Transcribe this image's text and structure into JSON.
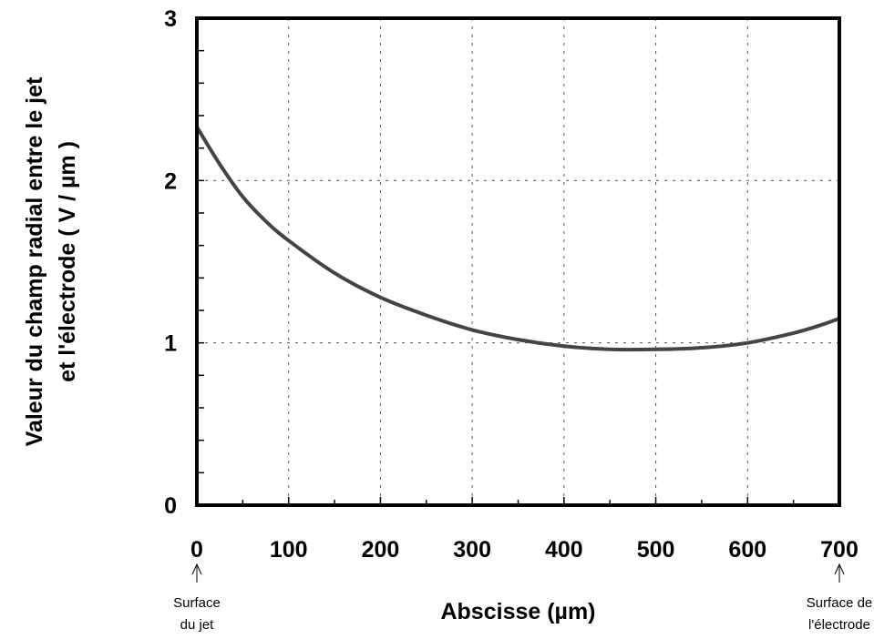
{
  "chart_data": {
    "type": "line",
    "title": "",
    "xlabel": "Abscisse (µm)",
    "ylabel_line1": "Valeur du champ radial entre le jet",
    "ylabel_line2": "et l'électrode ( V / µm )",
    "xlim": [
      0,
      700
    ],
    "ylim": [
      0,
      3
    ],
    "xticks": [
      0,
      100,
      200,
      300,
      400,
      500,
      600,
      700
    ],
    "yticks": [
      0,
      1,
      2,
      3
    ],
    "grid": true,
    "legend": "none",
    "series": [
      {
        "color": "#444444",
        "x": [
          0,
          25,
          50,
          75,
          100,
          150,
          200,
          250,
          300,
          350,
          400,
          450,
          500,
          550,
          600,
          650,
          680,
          700
        ],
        "y": [
          2.33,
          2.1,
          1.9,
          1.75,
          1.63,
          1.43,
          1.28,
          1.17,
          1.08,
          1.02,
          0.98,
          0.96,
          0.96,
          0.97,
          1.0,
          1.06,
          1.11,
          1.15
        ]
      }
    ],
    "annotations": [
      {
        "x": 0,
        "lines": [
          "Surface",
          "du jet"
        ]
      },
      {
        "x": 700,
        "lines": [
          "Surface de",
          "l'électrode"
        ]
      }
    ]
  }
}
